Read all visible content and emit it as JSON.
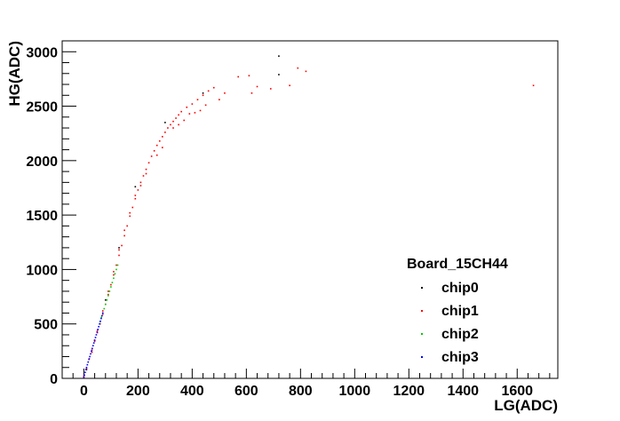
{
  "chart_data": {
    "type": "scatter",
    "title": "",
    "xlabel": "LG(ADC)",
    "ylabel": "HG(ADC)",
    "xlim": [
      -80,
      1750
    ],
    "ylim": [
      0,
      3100
    ],
    "x_ticks": [
      0,
      200,
      400,
      600,
      800,
      1000,
      1200,
      1400,
      1600
    ],
    "y_ticks": [
      0,
      500,
      1000,
      1500,
      2000,
      2500,
      3000
    ],
    "grid": false,
    "legend": {
      "title": "Board_15CH44",
      "placement": "bottom-right"
    },
    "series": [
      {
        "name": "chip0",
        "color": "#000000",
        "points": [
          [
            720,
            2960
          ],
          [
            720,
            2790
          ],
          [
            440,
            2620
          ],
          [
            300,
            2350
          ],
          [
            190,
            1760
          ],
          [
            130,
            1200
          ],
          [
            80,
            720
          ],
          [
            40,
            350
          ],
          [
            10,
            80
          ]
        ]
      },
      {
        "name": "chip1",
        "color": "#ff0000",
        "points": [
          [
            0,
            20
          ],
          [
            10,
            90
          ],
          [
            20,
            180
          ],
          [
            30,
            260
          ],
          [
            40,
            340
          ],
          [
            50,
            420
          ],
          [
            60,
            500
          ],
          [
            70,
            590
          ],
          [
            80,
            680
          ],
          [
            90,
            770
          ],
          [
            100,
            860
          ],
          [
            110,
            950
          ],
          [
            120,
            1040
          ],
          [
            130,
            1130
          ],
          [
            140,
            1220
          ],
          [
            150,
            1310
          ],
          [
            160,
            1400
          ],
          [
            170,
            1490
          ],
          [
            180,
            1570
          ],
          [
            190,
            1650
          ],
          [
            200,
            1730
          ],
          [
            210,
            1800
          ],
          [
            220,
            1860
          ],
          [
            230,
            1920
          ],
          [
            240,
            1980
          ],
          [
            250,
            2040
          ],
          [
            260,
            2090
          ],
          [
            270,
            2140
          ],
          [
            280,
            2180
          ],
          [
            290,
            2220
          ],
          [
            300,
            2260
          ],
          [
            310,
            2300
          ],
          [
            320,
            2330
          ],
          [
            330,
            2360
          ],
          [
            340,
            2390
          ],
          [
            350,
            2420
          ],
          [
            360,
            2450
          ],
          [
            380,
            2490
          ],
          [
            400,
            2520
          ],
          [
            420,
            2560
          ],
          [
            440,
            2600
          ],
          [
            460,
            2640
          ],
          [
            480,
            2670
          ],
          [
            500,
            2560
          ],
          [
            520,
            2620
          ],
          [
            570,
            2770
          ],
          [
            610,
            2780
          ],
          [
            620,
            2620
          ],
          [
            640,
            2680
          ],
          [
            690,
            2660
          ],
          [
            760,
            2690
          ],
          [
            790,
            2850
          ],
          [
            820,
            2820
          ],
          [
            1660,
            2690
          ],
          [
            270,
            2050
          ],
          [
            290,
            2120
          ],
          [
            330,
            2300
          ],
          [
            350,
            2330
          ],
          [
            370,
            2370
          ],
          [
            390,
            2430
          ],
          [
            410,
            2440
          ],
          [
            430,
            2460
          ],
          [
            450,
            2510
          ],
          [
            230,
            1880
          ],
          [
            210,
            1770
          ],
          [
            190,
            1680
          ],
          [
            170,
            1520
          ],
          [
            150,
            1360
          ],
          [
            130,
            1180
          ],
          [
            110,
            980
          ],
          [
            90,
            800
          ],
          [
            70,
            620
          ],
          [
            50,
            440
          ],
          [
            30,
            240
          ]
        ]
      },
      {
        "name": "chip2",
        "color": "#00cc00",
        "points": [
          [
            60,
            520
          ],
          [
            65,
            560
          ],
          [
            70,
            600
          ],
          [
            75,
            640
          ],
          [
            80,
            680
          ],
          [
            85,
            720
          ],
          [
            90,
            760
          ],
          [
            95,
            800
          ],
          [
            100,
            840
          ],
          [
            105,
            880
          ],
          [
            110,
            920
          ],
          [
            115,
            960
          ],
          [
            120,
            1000
          ],
          [
            125,
            1040
          ]
        ]
      },
      {
        "name": "chip3",
        "color": "#0000ff",
        "points": [
          [
            0,
            10
          ],
          [
            2,
            30
          ],
          [
            5,
            55
          ],
          [
            8,
            80
          ],
          [
            10,
            100
          ],
          [
            13,
            125
          ],
          [
            16,
            150
          ],
          [
            19,
            175
          ],
          [
            22,
            200
          ],
          [
            25,
            225
          ],
          [
            28,
            250
          ],
          [
            31,
            275
          ],
          [
            34,
            300
          ],
          [
            37,
            325
          ],
          [
            40,
            350
          ],
          [
            43,
            375
          ],
          [
            46,
            400
          ],
          [
            49,
            425
          ],
          [
            52,
            450
          ],
          [
            55,
            475
          ],
          [
            58,
            500
          ],
          [
            61,
            525
          ],
          [
            64,
            550
          ],
          [
            67,
            575
          ],
          [
            70,
            600
          ]
        ]
      }
    ]
  }
}
